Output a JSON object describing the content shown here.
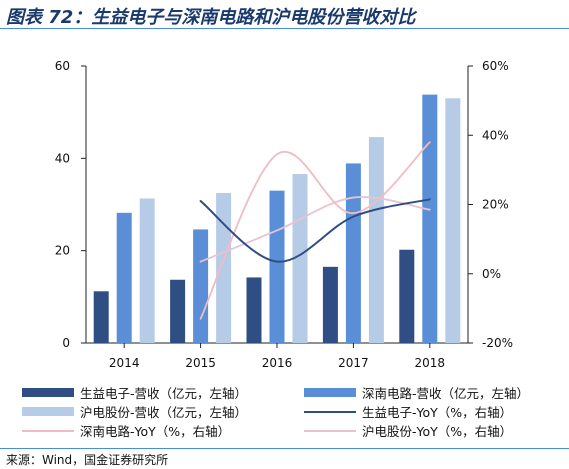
{
  "title": "图表 72：生益电子与深南电路和沪电股份营收对比",
  "source": "来源：Wind，国金证券研究所",
  "colors": {
    "accent": "#4a8fd6",
    "title": "#1a3a6e",
    "shengyi": "#2e4e84",
    "shennan": "#5a8fd8",
    "hudian": "#b6cbe6",
    "shengyi_yoy": "#2e4e84",
    "shennan_yoy": "#f0bcc4",
    "hudian_yoy": "#e9c2d2"
  },
  "chart_data": {
    "type": "bar",
    "categories": [
      "2014",
      "2015",
      "2016",
      "2017",
      "2018"
    ],
    "y_left": {
      "ylim": [
        0,
        60
      ],
      "ticks": [
        "0",
        "20",
        "40",
        "60"
      ]
    },
    "y_right": {
      "ylim": [
        -20,
        60
      ],
      "ticks": [
        "-20%",
        "0%",
        "20%",
        "40%",
        "60%"
      ]
    },
    "grid": false,
    "legend_position": "bottom",
    "series": [
      {
        "name": "生益电子-营收（亿元，左轴）",
        "type": "bar",
        "axis": "left",
        "color": "#2e4e84",
        "values": [
          11.2,
          13.7,
          14.2,
          16.5,
          20.2
        ]
      },
      {
        "name": "深南电路-营收（亿元，左轴）",
        "type": "bar",
        "axis": "left",
        "color": "#5a8fd8",
        "values": [
          28.2,
          24.6,
          33.0,
          38.9,
          53.8
        ]
      },
      {
        "name": "沪电股份-营收（亿元，左轴）",
        "type": "bar",
        "axis": "left",
        "color": "#b6cbe6",
        "values": [
          31.3,
          32.5,
          36.6,
          44.6,
          53.0
        ]
      },
      {
        "name": "生益电子-YoY（%，右轴）",
        "type": "line",
        "axis": "right",
        "color": "#2e4e84",
        "values": [
          null,
          21.0,
          3.5,
          16.5,
          21.5
        ]
      },
      {
        "name": "深南电路-YoY（%，右轴）",
        "type": "line",
        "axis": "right",
        "color": "#f0bcc4",
        "values": [
          null,
          -13.0,
          34.5,
          17.5,
          38.0
        ]
      },
      {
        "name": "沪电股份-YoY（%，右轴）",
        "type": "line",
        "axis": "right",
        "color": "#e9c2d2",
        "values": [
          null,
          3.5,
          12.5,
          22.0,
          18.5
        ]
      }
    ]
  }
}
